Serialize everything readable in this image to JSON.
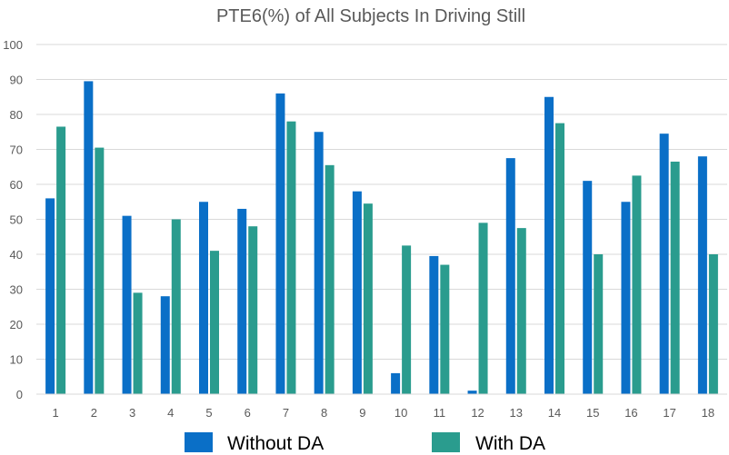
{
  "chart_data": {
    "type": "bar",
    "title": "PTE6(%) of All Subjects In Driving Still",
    "xlabel": "",
    "ylabel": "",
    "ylim": [
      0,
      100
    ],
    "yticks": [
      0,
      10,
      20,
      30,
      40,
      50,
      60,
      70,
      80,
      90,
      100
    ],
    "categories": [
      "1",
      "2",
      "3",
      "4",
      "5",
      "6",
      "7",
      "8",
      "9",
      "10",
      "11",
      "12",
      "13",
      "14",
      "15",
      "16",
      "17",
      "18"
    ],
    "series": [
      {
        "name": "Without DA",
        "color": "#0A6FC7",
        "values": [
          56,
          89.5,
          51,
          28,
          55,
          53,
          86,
          75,
          58,
          6,
          39.5,
          1,
          67.5,
          85,
          61,
          55,
          74.5,
          68
        ]
      },
      {
        "name": "With DA",
        "color": "#2A9C8E",
        "values": [
          76.5,
          70.5,
          29,
          50,
          41,
          48,
          78,
          65.5,
          54.5,
          42.5,
          37,
          49,
          47.5,
          77.5,
          40,
          62.5,
          66.5,
          40
        ]
      }
    ],
    "grid": true,
    "legend": "bottom"
  }
}
